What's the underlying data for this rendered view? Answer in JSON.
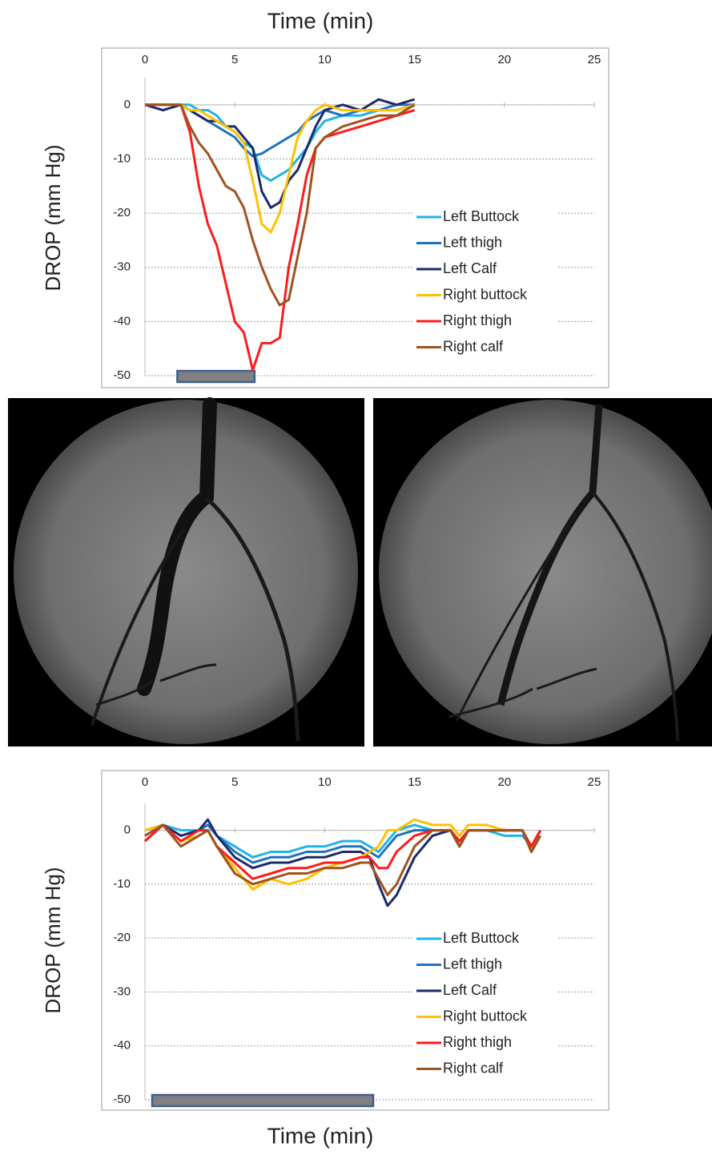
{
  "chart_data": [
    {
      "type": "line",
      "x_label": "Time (min)",
      "y_label": "DROP (mm Hg)",
      "x": [
        0,
        1,
        2,
        2.5,
        3,
        3.5,
        4,
        4.5,
        5,
        5.5,
        6,
        6.5,
        7,
        7.5,
        8,
        8.5,
        9,
        9.5,
        10,
        11,
        12,
        13,
        14,
        15
      ],
      "series": [
        {
          "name": "Left Buttock",
          "color": "#1fb4e8",
          "values": [
            0,
            0,
            0,
            0,
            -1,
            -1,
            -2,
            -4,
            -5,
            -7,
            -8,
            -13,
            -14,
            -13,
            -12,
            -10,
            -8,
            -5,
            -3,
            -2,
            -2,
            -1,
            -1,
            0
          ]
        },
        {
          "name": "Left thigh",
          "color": "#1f72bd",
          "values": [
            0,
            0,
            0,
            -1,
            -2,
            -3,
            -4,
            -5,
            -6,
            -8,
            -9.5,
            -9,
            -8,
            -7,
            -6,
            -5,
            -3,
            -2,
            -1,
            -2,
            -1,
            -1,
            0,
            0
          ]
        },
        {
          "name": "Left Calf",
          "color": "#1b2a6b",
          "values": [
            0,
            -1,
            0,
            -1,
            -2,
            -3,
            -3,
            -4,
            -4,
            -6,
            -8,
            -16,
            -19,
            -18,
            -14,
            -12,
            -8,
            -4,
            -1,
            0,
            -1,
            1,
            0,
            1
          ]
        },
        {
          "name": "Right buttock",
          "color": "#ffc000",
          "values": [
            0,
            0,
            0,
            -1,
            -1,
            -2,
            -3,
            -4,
            -5,
            -7,
            -14,
            -22,
            -23.5,
            -20,
            -13,
            -6,
            -3,
            -1,
            0,
            -1,
            -1,
            -1,
            -1,
            0
          ]
        },
        {
          "name": "Right thigh",
          "color": "#ff1a1a",
          "values": [
            0,
            0,
            0,
            -5,
            -15,
            -22,
            -26,
            -33,
            -40,
            -42,
            -49,
            -44,
            -44,
            -43,
            -30,
            -22,
            -13,
            -8,
            -6,
            -5,
            -4,
            -3,
            -2,
            -1
          ]
        },
        {
          "name": "Right calf",
          "color": "#a0521d",
          "values": [
            0,
            0,
            0,
            -4,
            -7,
            -9,
            -12,
            -15,
            -16,
            -19,
            -25,
            -30,
            -34,
            -37,
            -36,
            -28,
            -20,
            -8,
            -6,
            -4,
            -3,
            -2,
            -2,
            0
          ]
        }
      ],
      "occlusion": [
        1.8,
        6.1
      ],
      "xlim": [
        0,
        25
      ],
      "xticks": [
        0,
        5,
        10,
        15,
        20,
        25
      ],
      "ylim": [
        -50,
        5
      ],
      "yticks": [
        0,
        -10,
        -20,
        -30,
        -40,
        -50
      ],
      "grid": true,
      "legend": "right"
    },
    {
      "type": "line",
      "x_label": "Time (min)",
      "y_label": "DROP (mm Hg)",
      "x": [
        0,
        1,
        2,
        3,
        3.5,
        4,
        5,
        6,
        7,
        8,
        9,
        10,
        11,
        12,
        12.5,
        13,
        13.5,
        14,
        15,
        16,
        17,
        17.5,
        18,
        19,
        20,
        21,
        21.5,
        22
      ],
      "series": [
        {
          "name": "Left Buttock",
          "color": "#1fb4e8",
          "values": [
            0,
            1,
            0,
            0,
            1,
            -1,
            -3,
            -5,
            -4,
            -4,
            -3,
            -3,
            -2,
            -2,
            -3,
            -4,
            -2,
            0,
            1,
            0,
            0,
            -3,
            0,
            0,
            -1,
            -1,
            -3,
            0
          ]
        },
        {
          "name": "Left thigh",
          "color": "#1f72bd",
          "values": [
            -1,
            1,
            -1,
            0,
            1,
            -1,
            -4,
            -6,
            -5,
            -5,
            -4,
            -4,
            -3,
            -3,
            -4,
            -5,
            -3,
            -1,
            0,
            0,
            0,
            -3,
            0,
            0,
            0,
            0,
            -3,
            0
          ]
        },
        {
          "name": "Left Calf",
          "color": "#1b2a6b",
          "values": [
            -2,
            1,
            -1,
            0,
            2,
            -1,
            -5,
            -7,
            -6,
            -6,
            -5,
            -5,
            -4,
            -4,
            -5,
            -10,
            -14,
            -12,
            -5,
            -1,
            0,
            -3,
            0,
            0,
            0,
            0,
            -4,
            -1
          ]
        },
        {
          "name": "Right buttock",
          "color": "#ffc000",
          "values": [
            0,
            1,
            -2,
            -1,
            0,
            -3,
            -7,
            -11,
            -9,
            -10,
            -9,
            -7,
            -6,
            -5,
            -4,
            -3,
            0,
            0,
            2,
            1,
            1,
            -1,
            1,
            1,
            0,
            0,
            -3,
            0
          ]
        },
        {
          "name": "Right thigh",
          "color": "#ff1a1a",
          "values": [
            -2,
            1,
            -2,
            0,
            0,
            -3,
            -6,
            -9,
            -8,
            -7,
            -7,
            -6,
            -6,
            -5,
            -5,
            -7,
            -7,
            -4,
            -1,
            0,
            0,
            -2,
            0,
            0,
            0,
            0,
            -3,
            0
          ]
        },
        {
          "name": "Right calf",
          "color": "#a0521d",
          "values": [
            -1,
            1,
            -3,
            -1,
            0,
            -3,
            -8,
            -10,
            -9,
            -8,
            -8,
            -7,
            -7,
            -6,
            -6,
            -9,
            -12,
            -10,
            -3,
            0,
            0,
            -3,
            0,
            0,
            0,
            0,
            -4,
            -1
          ]
        }
      ],
      "occlusion": [
        0.4,
        12.7
      ],
      "xlim": [
        0,
        25
      ],
      "xticks": [
        0,
        5,
        10,
        15,
        20,
        25
      ],
      "ylim": [
        -50,
        5
      ],
      "yticks": [
        0,
        -10,
        -20,
        -30,
        -40,
        -50
      ],
      "grid": true,
      "legend": "right"
    }
  ]
}
